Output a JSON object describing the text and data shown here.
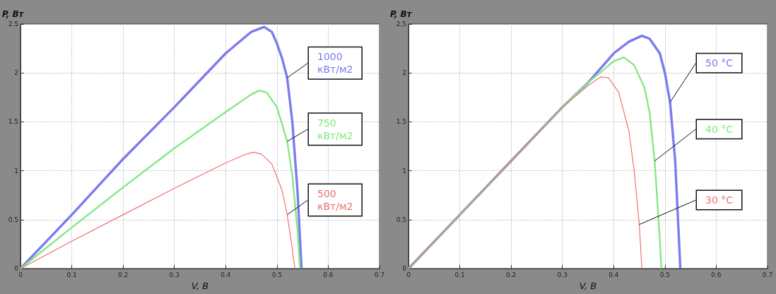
{
  "chart_data": [
    {
      "type": "line",
      "xlabel": "V, В",
      "ylabel": "P, Вт",
      "xlim": [
        0,
        0.7
      ],
      "xticks": [
        0,
        0.1,
        0.2,
        0.3,
        0.4,
        0.5,
        0.6,
        0.7
      ],
      "ylim": [
        0,
        2.5
      ],
      "yticks": [
        0,
        0.5,
        1,
        1.5,
        2,
        2.5
      ],
      "grid": true,
      "line_style": "solid",
      "marker": "none",
      "series": [
        {
          "name": "1000 кВт/м2",
          "color": "#7b7bef",
          "x": [
            0,
            0.1,
            0.2,
            0.3,
            0.4,
            0.45,
            0.475,
            0.49,
            0.5,
            0.51,
            0.52,
            0.53,
            0.54,
            0.548
          ],
          "values": [
            0,
            0.55,
            1.12,
            1.65,
            2.2,
            2.42,
            2.47,
            2.42,
            2.3,
            2.15,
            1.95,
            1.5,
            0.8,
            0
          ]
        },
        {
          "name": "750 кВт/м2",
          "color": "#80e880",
          "x": [
            0,
            0.1,
            0.2,
            0.3,
            0.4,
            0.45,
            0.465,
            0.48,
            0.5,
            0.52,
            0.53,
            0.54,
            0.545
          ],
          "values": [
            0,
            0.42,
            0.83,
            1.23,
            1.6,
            1.78,
            1.82,
            1.8,
            1.65,
            1.3,
            0.95,
            0.4,
            0
          ]
        },
        {
          "name": "500 кВт/м2",
          "color": "#ef7070",
          "x": [
            0,
            0.1,
            0.2,
            0.3,
            0.4,
            0.44,
            0.455,
            0.47,
            0.49,
            0.51,
            0.52,
            0.53,
            0.535
          ],
          "values": [
            0,
            0.28,
            0.55,
            0.82,
            1.08,
            1.17,
            1.19,
            1.17,
            1.07,
            0.8,
            0.55,
            0.2,
            0
          ]
        }
      ]
    },
    {
      "type": "line",
      "xlabel": "V, В",
      "ylabel": "P, Вт",
      "xlim": [
        0,
        0.7
      ],
      "xticks": [
        0,
        0.1,
        0.2,
        0.3,
        0.4,
        0.5,
        0.6,
        0.7
      ],
      "ylim": [
        0,
        2.5
      ],
      "yticks": [
        0,
        0.5,
        1,
        1.5,
        2,
        2.5
      ],
      "grid": true,
      "line_style": "solid",
      "marker": "none",
      "series": [
        {
          "name": "50 °C",
          "color": "#7b7bef",
          "x": [
            0,
            0.1,
            0.2,
            0.3,
            0.35,
            0.4,
            0.43,
            0.455,
            0.47,
            0.49,
            0.5,
            0.51,
            0.52,
            0.53
          ],
          "values": [
            0,
            0.55,
            1.1,
            1.65,
            1.9,
            2.2,
            2.32,
            2.38,
            2.35,
            2.2,
            2.0,
            1.7,
            1.1,
            0
          ]
        },
        {
          "name": "40 °C",
          "color": "#80e880",
          "x": [
            0,
            0.1,
            0.2,
            0.3,
            0.35,
            0.4,
            0.42,
            0.44,
            0.46,
            0.47,
            0.48,
            0.49,
            0.493
          ],
          "values": [
            0,
            0.55,
            1.1,
            1.65,
            1.9,
            2.12,
            2.16,
            2.08,
            1.85,
            1.6,
            1.1,
            0.3,
            0
          ]
        },
        {
          "name": "30 °C",
          "color": "#ef7070",
          "x": [
            0,
            0.1,
            0.2,
            0.3,
            0.35,
            0.375,
            0.39,
            0.41,
            0.43,
            0.44,
            0.45,
            0.455
          ],
          "values": [
            0,
            0.55,
            1.1,
            1.65,
            1.87,
            1.96,
            1.95,
            1.8,
            1.4,
            1.0,
            0.45,
            0
          ]
        }
      ]
    }
  ]
}
